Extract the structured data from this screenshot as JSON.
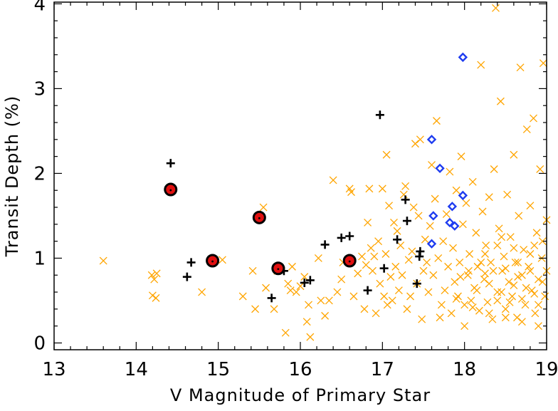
{
  "chart_data": {
    "type": "scatter",
    "title": "",
    "xlabel": "V Magnitude of Primary Star",
    "ylabel": "Transit Depth (%)",
    "xlim": [
      13,
      19
    ],
    "ylim": [
      -0.08,
      4.02
    ],
    "x_ticks": [
      13,
      14,
      15,
      16,
      17,
      18,
      19
    ],
    "y_ticks": [
      0,
      1,
      2,
      3,
      4
    ],
    "grid": false,
    "colors": {
      "orange_x": "#FFA500",
      "black_plus": "#000000",
      "blue_diamond": "#1E3CF0",
      "red_dot": "#E01010"
    },
    "series": [
      {
        "marker": "x",
        "points": [
          [
            13.6,
            0.97
          ],
          [
            14.19,
            0.8
          ],
          [
            14.2,
            0.56
          ],
          [
            14.22,
            0.75
          ],
          [
            14.25,
            0.82
          ],
          [
            14.24,
            0.53
          ],
          [
            14.8,
            0.6
          ],
          [
            15.05,
            0.98
          ],
          [
            15.3,
            0.55
          ],
          [
            15.42,
            0.85
          ],
          [
            15.45,
            0.4
          ],
          [
            15.55,
            1.6
          ],
          [
            15.58,
            0.65
          ],
          [
            15.68,
            0.4
          ],
          [
            15.72,
            0.85
          ],
          [
            15.82,
            0.12
          ],
          [
            15.85,
            0.7
          ],
          [
            15.88,
            0.62
          ],
          [
            15.9,
            0.9
          ],
          [
            15.95,
            0.6
          ],
          [
            16.0,
            0.67
          ],
          [
            16.05,
            0.78
          ],
          [
            16.08,
            0.25
          ],
          [
            16.1,
            0.45
          ],
          [
            16.12,
            0.07
          ],
          [
            16.22,
            1.0
          ],
          [
            16.25,
            0.5
          ],
          [
            16.3,
            0.32
          ],
          [
            16.35,
            0.5
          ],
          [
            16.4,
            1.92
          ],
          [
            16.45,
            0.6
          ],
          [
            16.5,
            0.75
          ],
          [
            16.52,
            0.95
          ],
          [
            16.6,
            1.82
          ],
          [
            16.62,
            1.78
          ],
          [
            16.65,
            0.55
          ],
          [
            16.7,
            0.82
          ],
          [
            16.75,
            1.02
          ],
          [
            16.78,
            0.4
          ],
          [
            16.8,
            0.92
          ],
          [
            16.82,
            1.42
          ],
          [
            16.84,
            1.82
          ],
          [
            16.86,
            1.12
          ],
          [
            16.88,
            0.85
          ],
          [
            16.9,
            1.02
          ],
          [
            16.92,
            0.35
          ],
          [
            16.95,
            1.2
          ],
          [
            16.97,
            0.7
          ],
          [
            17.0,
            1.82
          ],
          [
            17.02,
            0.55
          ],
          [
            17.04,
            1.05
          ],
          [
            17.05,
            2.22
          ],
          [
            17.06,
            0.45
          ],
          [
            17.08,
            1.62
          ],
          [
            17.1,
            0.78
          ],
          [
            17.12,
            0.5
          ],
          [
            17.14,
            1.42
          ],
          [
            17.16,
            0.9
          ],
          [
            17.18,
            1.32
          ],
          [
            17.2,
            0.62
          ],
          [
            17.22,
            1.15
          ],
          [
            17.24,
            0.8
          ],
          [
            17.26,
            1.75
          ],
          [
            17.28,
            1.85
          ],
          [
            17.3,
            0.4
          ],
          [
            17.32,
            0.98
          ],
          [
            17.34,
            0.55
          ],
          [
            17.36,
            1.08
          ],
          [
            17.38,
            1.6
          ],
          [
            17.4,
            2.35
          ],
          [
            17.42,
            0.7
          ],
          [
            17.44,
            1.5
          ],
          [
            17.46,
            2.4
          ],
          [
            17.48,
            0.28
          ],
          [
            17.5,
            0.85
          ],
          [
            17.52,
            1.22
          ],
          [
            17.54,
            0.95
          ],
          [
            17.56,
            0.6
          ],
          [
            17.58,
            1.38
          ],
          [
            17.6,
            2.1
          ],
          [
            17.62,
            0.8
          ],
          [
            17.64,
            1.7
          ],
          [
            17.66,
            2.62
          ],
          [
            17.68,
            1.0
          ],
          [
            17.7,
            0.3
          ],
          [
            17.72,
            0.45
          ],
          [
            17.74,
            1.2
          ],
          [
            17.76,
            0.62
          ],
          [
            17.78,
            1.52
          ],
          [
            17.8,
            0.9
          ],
          [
            17.82,
            2.02
          ],
          [
            17.84,
            0.35
          ],
          [
            17.86,
            1.12
          ],
          [
            17.88,
            0.72
          ],
          [
            17.9,
            1.8
          ],
          [
            17.92,
            0.55
          ],
          [
            17.94,
            0.95
          ],
          [
            17.96,
            2.2
          ],
          [
            17.98,
            1.4
          ],
          [
            18.0,
            0.2
          ],
          [
            18.02,
            1.65
          ],
          [
            18.04,
            0.8
          ],
          [
            18.06,
            1.05
          ],
          [
            18.08,
            0.5
          ],
          [
            18.1,
            1.9
          ],
          [
            18.12,
            0.65
          ],
          [
            18.14,
            1.3
          ],
          [
            18.16,
            0.9
          ],
          [
            18.18,
            0.38
          ],
          [
            18.2,
            3.28
          ],
          [
            18.22,
            1.55
          ],
          [
            18.24,
            0.75
          ],
          [
            18.26,
            1.15
          ],
          [
            18.28,
            0.48
          ],
          [
            18.3,
            1.72
          ],
          [
            18.32,
            0.95
          ],
          [
            18.34,
            0.28
          ],
          [
            18.36,
            2.05
          ],
          [
            18.38,
            3.95
          ],
          [
            18.4,
            0.6
          ],
          [
            18.42,
            1.35
          ],
          [
            18.44,
            2.85
          ],
          [
            18.46,
            0.85
          ],
          [
            18.48,
            1.02
          ],
          [
            18.5,
            0.4
          ],
          [
            18.52,
            1.75
          ],
          [
            18.54,
            0.72
          ],
          [
            18.56,
            1.25
          ],
          [
            18.58,
            0.55
          ],
          [
            18.6,
            2.22
          ],
          [
            18.62,
            0.95
          ],
          [
            18.64,
            0.3
          ],
          [
            18.66,
            1.5
          ],
          [
            18.68,
            3.25
          ],
          [
            18.7,
            0.8
          ],
          [
            18.72,
            1.1
          ],
          [
            18.74,
            0.45
          ],
          [
            18.76,
            2.52
          ],
          [
            18.78,
            0.9
          ],
          [
            18.8,
            1.62
          ],
          [
            18.82,
            0.62
          ],
          [
            18.84,
            2.65
          ],
          [
            18.86,
            0.35
          ],
          [
            18.88,
            1.3
          ],
          [
            18.9,
            0.75
          ],
          [
            18.92,
            2.05
          ],
          [
            18.94,
            1.0
          ],
          [
            18.96,
            3.3
          ],
          [
            18.98,
            0.55
          ],
          [
            19.0,
            1.45
          ],
          [
            18.2,
            0.95
          ],
          [
            18.3,
            0.7
          ],
          [
            18.4,
            0.5
          ],
          [
            18.5,
            0.88
          ],
          [
            18.6,
            0.68
          ],
          [
            18.7,
            0.52
          ],
          [
            18.8,
            0.85
          ],
          [
            18.9,
            0.45
          ],
          [
            18.25,
            0.82
          ],
          [
            18.45,
            0.6
          ],
          [
            18.65,
            0.78
          ],
          [
            18.85,
            0.58
          ],
          [
            18.15,
            0.62
          ],
          [
            18.35,
            0.85
          ],
          [
            18.55,
            0.48
          ],
          [
            18.75,
            0.65
          ],
          [
            18.95,
            0.72
          ],
          [
            18.1,
            0.42
          ],
          [
            18.3,
            0.35
          ],
          [
            18.5,
            0.3
          ],
          [
            18.7,
            0.25
          ],
          [
            18.9,
            0.2
          ],
          [
            19.0,
            0.85
          ],
          [
            18.05,
            0.85
          ],
          [
            18.4,
            1.15
          ],
          [
            18.6,
            1.12
          ],
          [
            18.8,
            1.05
          ],
          [
            18.95,
            1.2
          ],
          [
            17.9,
            0.52
          ],
          [
            17.95,
            0.78
          ],
          [
            18.0,
            0.45
          ],
          [
            18.25,
            1.05
          ],
          [
            18.45,
            1.25
          ],
          [
            18.65,
            0.95
          ],
          [
            18.85,
            1.15
          ]
        ]
      },
      {
        "marker": "plus",
        "points": [
          [
            14.42,
            2.12
          ],
          [
            14.62,
            0.78
          ],
          [
            14.67,
            0.95
          ],
          [
            15.65,
            0.53
          ],
          [
            15.8,
            0.85
          ],
          [
            16.05,
            0.71
          ],
          [
            16.12,
            0.74
          ],
          [
            16.3,
            1.16
          ],
          [
            16.5,
            1.24
          ],
          [
            16.6,
            1.26
          ],
          [
            16.82,
            0.62
          ],
          [
            16.97,
            2.69
          ],
          [
            17.02,
            0.88
          ],
          [
            17.18,
            1.22
          ],
          [
            17.28,
            1.69
          ],
          [
            17.3,
            1.44
          ],
          [
            17.42,
            0.7
          ],
          [
            17.45,
            1.02
          ],
          [
            17.46,
            1.08
          ]
        ]
      },
      {
        "marker": "diamond",
        "points": [
          [
            17.6,
            2.4
          ],
          [
            17.6,
            1.17
          ],
          [
            17.62,
            1.5
          ],
          [
            17.7,
            2.06
          ],
          [
            17.82,
            1.42
          ],
          [
            17.85,
            1.61
          ],
          [
            17.88,
            1.38
          ],
          [
            17.98,
            3.37
          ],
          [
            17.98,
            1.74
          ]
        ]
      },
      {
        "marker": "circle",
        "points": [
          [
            14.42,
            1.81
          ],
          [
            14.93,
            0.97
          ],
          [
            15.5,
            1.48
          ],
          [
            15.73,
            0.88
          ],
          [
            16.6,
            0.97
          ]
        ]
      }
    ]
  }
}
